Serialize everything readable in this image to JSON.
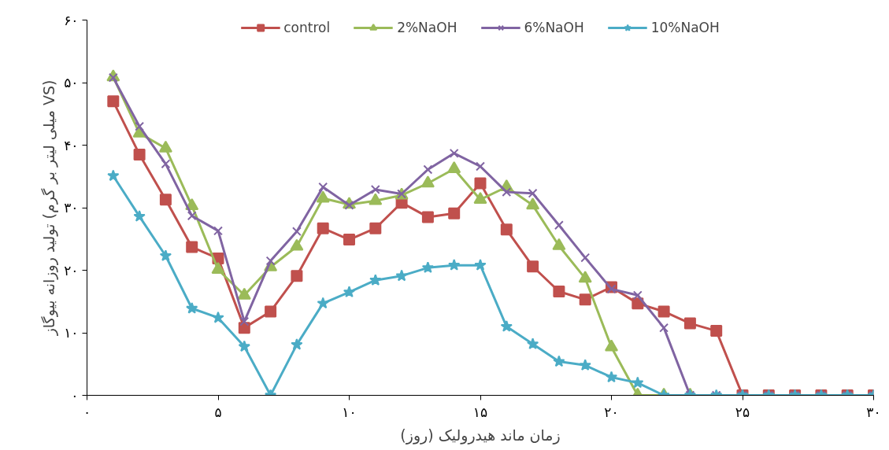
{
  "chart_data": {
    "type": "line",
    "xlabel": "زمان ماند هیدرولیک (روز)",
    "ylabel": "تولید روزانه بیوگاز (میلی لیتر بر گرم VS)",
    "x": [
      1,
      2,
      3,
      4,
      5,
      6,
      7,
      8,
      9,
      10,
      11,
      12,
      13,
      14,
      15,
      16,
      17,
      18,
      19,
      20,
      21,
      22,
      23,
      24,
      25,
      26,
      27,
      28,
      29,
      30
    ],
    "xlim": [
      0,
      30
    ],
    "ylim": [
      0,
      60
    ],
    "xticks": [
      {
        "value": 0,
        "label": "۰"
      },
      {
        "value": 5,
        "label": "۵"
      },
      {
        "value": 10,
        "label": "۱۰"
      },
      {
        "value": 15,
        "label": "۱۵"
      },
      {
        "value": 20,
        "label": "۲۰"
      },
      {
        "value": 25,
        "label": "۲۵"
      },
      {
        "value": 30,
        "label": "۳۰"
      }
    ],
    "yticks": [
      {
        "value": 0,
        "label": "۰"
      },
      {
        "value": 10,
        "label": "۱۰"
      },
      {
        "value": 20,
        "label": "۲۰"
      },
      {
        "value": 30,
        "label": "۳۰"
      },
      {
        "value": 40,
        "label": "۴۰"
      },
      {
        "value": 50,
        "label": "۵۰"
      },
      {
        "value": 60,
        "label": "۶۰"
      }
    ],
    "grid": false,
    "legend": "top",
    "line_style": "solid",
    "series": [
      {
        "name": "control",
        "color": "#c0504d",
        "marker": "square",
        "values": [
          47,
          38.5,
          31.3,
          23.7,
          21.9,
          10.8,
          13.4,
          19.1,
          26.7,
          24.9,
          26.7,
          30.8,
          28.5,
          29.1,
          33.9,
          26.5,
          20.6,
          16.6,
          15.3,
          17.3,
          14.7,
          13.4,
          11.5,
          10.3,
          0,
          0,
          0,
          0,
          0,
          0
        ]
      },
      {
        "name": "2%NaOH",
        "color": "#9bbb59",
        "marker": "triangle",
        "values": [
          50.9,
          41.9,
          39.5,
          30.3,
          20.1,
          16,
          20.5,
          23.8,
          31.5,
          30.5,
          31.1,
          32,
          33.9,
          36.2,
          31.3,
          33.3,
          30.4,
          23.9,
          18.7,
          7.7,
          0,
          0,
          0,
          null,
          null,
          null,
          null,
          null,
          null,
          null
        ]
      },
      {
        "name": "6%NaOH",
        "color": "#8064a2",
        "marker": "cross",
        "values": [
          50.8,
          43,
          37,
          28.7,
          26.3,
          11.8,
          21.5,
          26.2,
          33.3,
          30.4,
          32.9,
          32.2,
          36.1,
          38.7,
          36.6,
          32.5,
          32.3,
          27.2,
          22,
          17,
          16,
          10.8,
          0,
          0,
          0,
          0,
          0,
          0,
          0,
          0
        ]
      },
      {
        "name": "10%NaOH",
        "color": "#4bacc6",
        "marker": "star",
        "values": [
          35.1,
          28.6,
          22.3,
          13.9,
          12.4,
          7.8,
          0,
          8.1,
          14.7,
          16.5,
          18.4,
          19.1,
          20.4,
          20.8,
          20.8,
          11,
          8.2,
          5.4,
          4.8,
          2.9,
          2,
          0,
          0,
          0,
          0,
          0,
          0,
          0,
          0,
          0
        ]
      }
    ]
  }
}
